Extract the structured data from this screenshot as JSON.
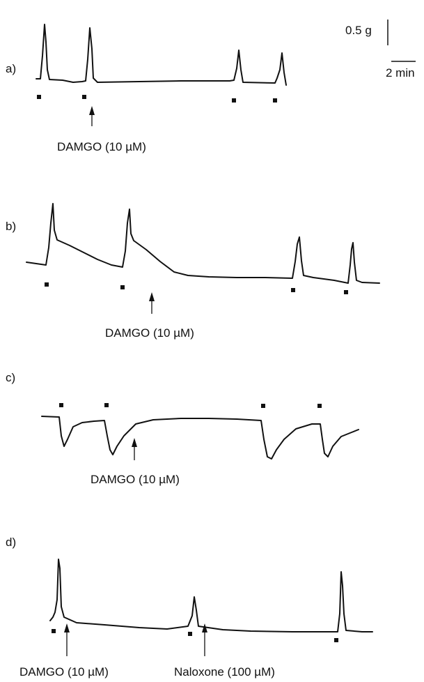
{
  "scale_bar": {
    "force_label": "0.5 g",
    "time_label": "2 min"
  },
  "panels": [
    {
      "id": "a",
      "label": "a)",
      "annotations": [
        {
          "text": "DAMGO (10 µM)"
        }
      ]
    },
    {
      "id": "b",
      "label": "b)",
      "annotations": [
        {
          "text": "DAMGO (10 µM)"
        }
      ]
    },
    {
      "id": "c",
      "label": "c)",
      "annotations": [
        {
          "text": "DAMGO (10 µM)"
        }
      ]
    },
    {
      "id": "d",
      "label": "d)",
      "annotations": [
        {
          "text": "DAMGO (10 µM)"
        },
        {
          "text": "Naloxone (100 µM)"
        }
      ]
    }
  ]
}
